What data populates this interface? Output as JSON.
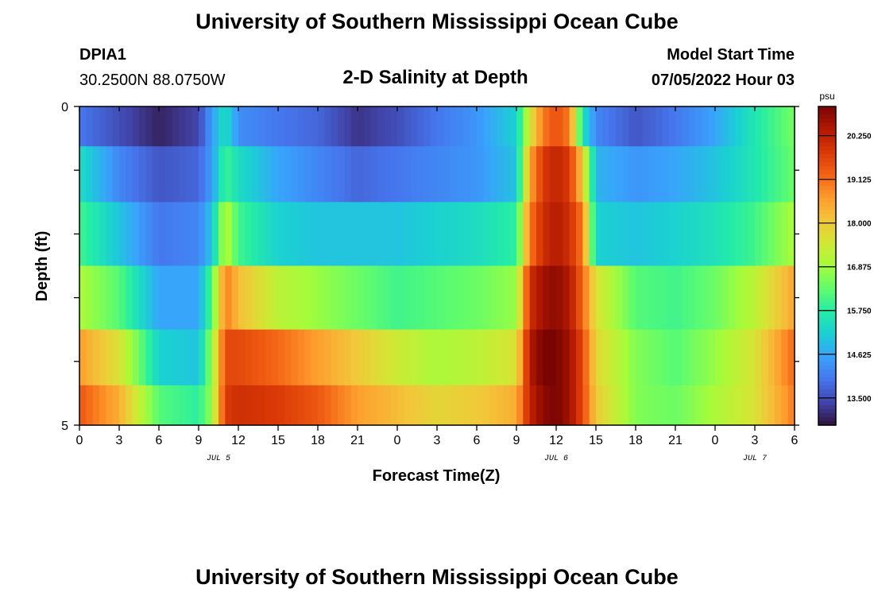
{
  "header": {
    "title": "University of Southern Mississippi Ocean Cube",
    "station_id": "DPIA1",
    "coordinates": "30.2500N  88.0750W",
    "plot_title": "2-D Salinity at Depth",
    "model_start_label": "Model Start Time",
    "model_start_value": "07/05/2022 Hour 03"
  },
  "footer": {
    "title": "University of Southern Mississippi Ocean Cube"
  },
  "chart_data": {
    "type": "heatmap",
    "title": "2-D Salinity at Depth",
    "xlabel": "Forecast Time(Z)",
    "ylabel": "Depth (ft)",
    "x_tick_labels": [
      "0",
      "3",
      "6",
      "9",
      "12",
      "15",
      "18",
      "21",
      "0",
      "3",
      "6",
      "9",
      "12",
      "15",
      "18",
      "21",
      "0",
      "3",
      "6"
    ],
    "date_labels": [
      {
        "label": "JUL 5",
        "tick_index": 3.5
      },
      {
        "label": "JUL 6",
        "tick_index": 12
      },
      {
        "label": "JUL 7",
        "tick_index": 17
      }
    ],
    "y_tick_labels": [
      "0",
      "5"
    ],
    "ylim": [
      0,
      5
    ],
    "colorbar": {
      "unit": "psu",
      "tick_labels": [
        "13.500",
        "14.625",
        "15.750",
        "16.875",
        "18.000",
        "19.125",
        "20.250"
      ],
      "range": [
        12.8,
        21.0
      ]
    },
    "colors": {
      "c0": "#30123b",
      "c1": "#4145ab",
      "c2": "#4675ed",
      "c3": "#39a2fc",
      "c4": "#1bcfd4",
      "c5": "#24eca6",
      "c6": "#61fc6c",
      "c7": "#a4fc3b",
      "c8": "#d1e834",
      "c9": "#f3c63a",
      "c10": "#fe9b2d",
      "c11": "#f36315",
      "c12": "#d93806",
      "c13": "#b11901",
      "c14": "#7a0402"
    },
    "row_depths_ft": [
      0.25,
      1.0,
      2.0,
      3.0,
      4.0,
      4.75
    ],
    "forecast_hours": [
      0,
      3,
      6,
      9,
      10,
      11,
      12,
      15,
      18,
      21,
      24,
      27,
      30,
      33,
      34,
      35,
      36,
      37,
      38,
      39,
      42,
      45,
      48,
      51,
      54
    ],
    "salinity_rows": [
      [
        14.0,
        13.5,
        13.0,
        13.4,
        14.5,
        15.5,
        14.3,
        14.0,
        13.8,
        13.2,
        13.5,
        14.0,
        14.4,
        15.2,
        17.5,
        19.0,
        19.5,
        19.0,
        15.5,
        14.2,
        13.6,
        14.0,
        14.6,
        15.6,
        16.5
      ],
      [
        15.4,
        14.2,
        13.6,
        13.8,
        14.5,
        16.0,
        15.4,
        14.6,
        14.2,
        13.8,
        14.0,
        14.2,
        14.4,
        15.0,
        18.5,
        19.8,
        20.2,
        19.8,
        18.0,
        14.8,
        14.4,
        14.6,
        15.0,
        15.6,
        16.4
      ],
      [
        16.0,
        15.0,
        14.0,
        14.2,
        15.0,
        17.2,
        16.0,
        15.2,
        15.0,
        15.0,
        15.0,
        15.2,
        15.4,
        15.8,
        19.0,
        20.0,
        20.4,
        20.0,
        19.0,
        15.2,
        15.0,
        15.2,
        15.5,
        16.0,
        17.0
      ],
      [
        17.0,
        16.2,
        14.6,
        14.6,
        16.2,
        19.0,
        18.2,
        17.2,
        16.8,
        16.4,
        16.0,
        16.2,
        16.4,
        16.8,
        20.0,
        20.6,
        20.8,
        20.4,
        19.2,
        17.6,
        16.2,
        16.0,
        16.4,
        17.2,
        18.5
      ],
      [
        18.6,
        17.6,
        15.2,
        15.0,
        16.8,
        19.6,
        19.6,
        19.2,
        18.6,
        18.0,
        17.4,
        17.0,
        17.2,
        17.6,
        20.4,
        21.0,
        21.0,
        20.6,
        19.6,
        17.8,
        16.6,
        16.2,
        16.8,
        17.6,
        19.2
      ],
      [
        19.4,
        18.4,
        16.2,
        15.8,
        16.8,
        19.8,
        20.0,
        19.8,
        19.4,
        18.6,
        18.2,
        17.8,
        18.0,
        18.4,
        20.2,
        20.8,
        21.0,
        20.6,
        19.6,
        18.0,
        16.6,
        16.4,
        17.0,
        17.6,
        19.0
      ]
    ]
  }
}
